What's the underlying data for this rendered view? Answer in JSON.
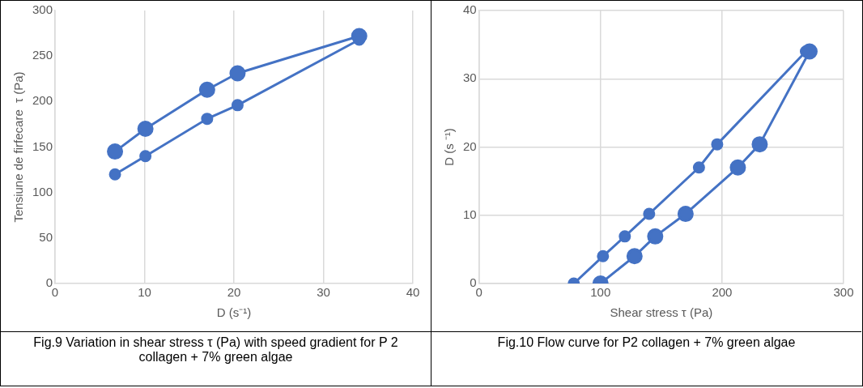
{
  "chart_data": [
    {
      "type": "line",
      "xlabel": "D (s⁻¹)",
      "ylabel": "Tensiune de firfecare  τ (Pa)",
      "x": [
        6.7,
        10.1,
        17,
        20.4,
        34
      ],
      "series": [
        {
          "color": "#4472c4",
          "values": [
            120,
            140,
            181,
            196,
            268
          ]
        },
        {
          "color": "#4472c4",
          "values": [
            145,
            170,
            213,
            231,
            272
          ]
        }
      ],
      "xlim": [
        0,
        40
      ],
      "xticks": [
        0,
        10,
        20,
        30,
        40
      ],
      "ylim": [
        0,
        300
      ],
      "yticks": [
        0,
        50,
        100,
        150,
        200,
        250,
        300
      ],
      "grid": "x",
      "marker": "circle",
      "line_style": "solid",
      "annotations": [
        "Fig.9 Variation in shear stress τ (Pa) with speed gradient for P 2 collagen + 7% green algae"
      ]
    },
    {
      "type": "line",
      "xlabel": "Shear stress τ (Pa)",
      "ylabel": "D (s ⁻¹)",
      "series": [
        {
          "color": "#4472c4",
          "x": [
            78,
            102,
            120,
            140,
            181,
            196,
            269
          ],
          "values": [
            0,
            4,
            6.9,
            10.2,
            17,
            20.4,
            34
          ]
        },
        {
          "color": "#4472c4",
          "x": [
            100,
            128,
            145,
            170,
            213,
            231,
            272
          ],
          "values": [
            0,
            4,
            6.9,
            10.2,
            17,
            20.4,
            34
          ]
        }
      ],
      "xlim": [
        0,
        300
      ],
      "xticks": [
        0,
        100,
        200,
        300
      ],
      "ylim": [
        0,
        40
      ],
      "yticks": [
        0,
        10,
        20,
        30,
        40
      ],
      "grid": true,
      "marker": "circle",
      "line_style": "solid",
      "annotations": [
        "Fig.10 Flow curve for P2 collagen + 7% green algae"
      ]
    }
  ]
}
